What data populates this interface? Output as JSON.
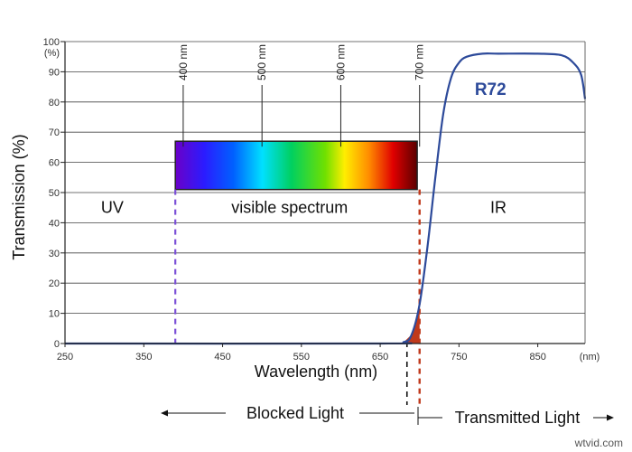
{
  "chart_data": {
    "type": "line",
    "title": "",
    "xlabel": "Wavelength (nm)",
    "ylabel": "Transmission (%)",
    "xlim": [
      250,
      910
    ],
    "ylim": [
      0,
      100
    ],
    "x_ticks": [
      250,
      350,
      450,
      550,
      650,
      750,
      850
    ],
    "x_tick_labels": [
      "250",
      "350",
      "450",
      "550",
      "650",
      "750",
      "850"
    ],
    "x_unit_label": "(nm)",
    "y_ticks": [
      0,
      10,
      20,
      30,
      40,
      50,
      60,
      70,
      80,
      90,
      100
    ],
    "y_unit_label": "(%)",
    "grid": true,
    "series": [
      {
        "name": "R72",
        "color": "#2d4a9a",
        "x": [
          250,
          650,
          680,
          690,
          700,
          710,
          720,
          730,
          740,
          750,
          760,
          780,
          800,
          850,
          880,
          895,
          905,
          910
        ],
        "y": [
          0,
          0,
          0.5,
          3,
          13,
          32,
          55,
          76,
          88,
          93,
          95,
          96,
          96,
          96,
          95.5,
          93,
          89,
          81
        ]
      }
    ],
    "spectrum_bar": {
      "start_nm": 390,
      "end_nm": 697,
      "y_bottom": 51,
      "y_top": 67,
      "markers": [
        {
          "label": "400 nm",
          "x": 400
        },
        {
          "label": "500 nm",
          "x": 500
        },
        {
          "label": "600 nm",
          "x": 600
        },
        {
          "label": "700 nm",
          "x": 700
        }
      ]
    },
    "regions": [
      {
        "label": "UV",
        "x": 310,
        "y": 45
      },
      {
        "label": "visible spectrum",
        "x": 535,
        "y": 45
      },
      {
        "label": "IR",
        "x": 800,
        "y": 45
      }
    ],
    "dashed_lines": [
      {
        "name": "visible-start",
        "x": 390,
        "color": "#7b4fd6"
      },
      {
        "name": "visible-end",
        "x": 700,
        "color": "#c0391b"
      },
      {
        "name": "cutoff",
        "x": 684,
        "color": "#111111"
      }
    ],
    "annotations": {
      "blocked_light": "Blocked Light",
      "transmitted_light": "Transmitted Light"
    }
  },
  "watermark": "wtvid.com"
}
